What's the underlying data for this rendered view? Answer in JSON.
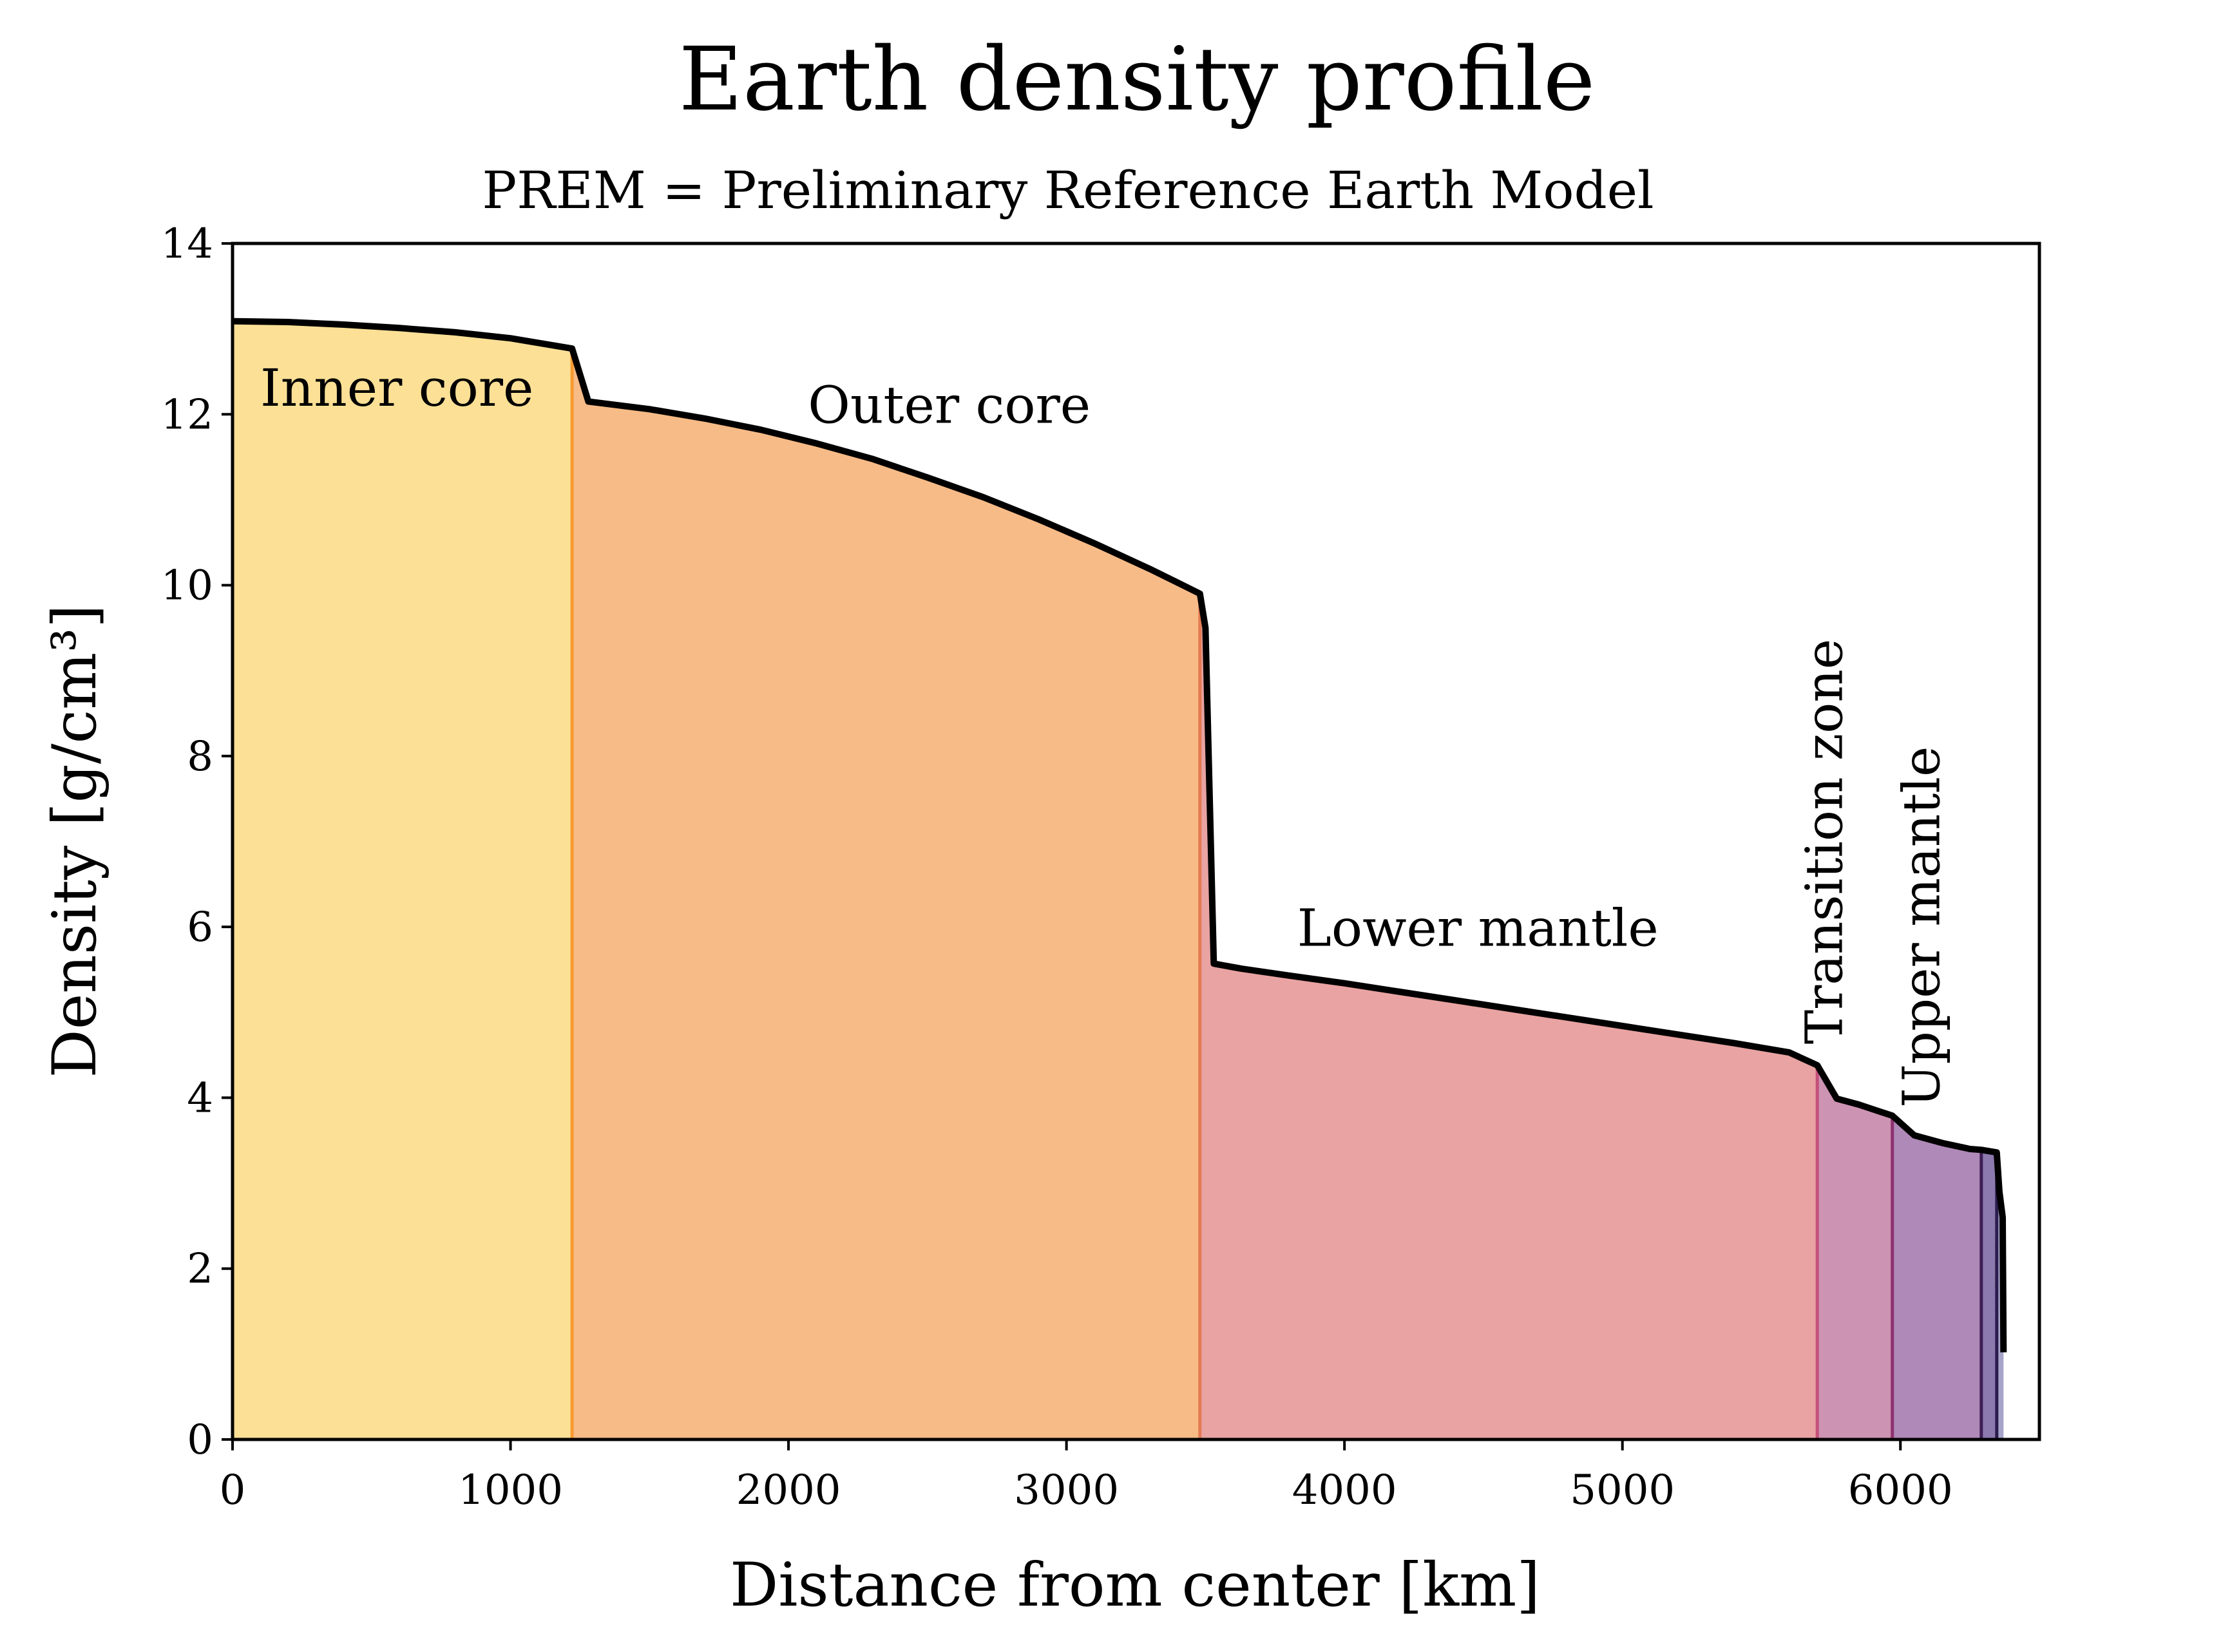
{
  "chart_data": {
    "type": "area",
    "title": "Earth density profile",
    "subtitle": "PREM = Preliminary Reference Earth Model",
    "xlabel": "Distance from center [km]",
    "ylabel": "Density [g/cm³]",
    "xlim": [
      0,
      6500
    ],
    "ylim": [
      0,
      14
    ],
    "x_ticks": [
      0,
      1000,
      2000,
      3000,
      4000,
      5000,
      6000
    ],
    "y_ticks": [
      0,
      2,
      4,
      6,
      8,
      10,
      12,
      14
    ],
    "grid": false,
    "legend": "none",
    "profile": {
      "x": [
        0,
        200,
        400,
        600,
        800,
        1000,
        1221.5,
        1280,
        1500,
        1700,
        1900,
        2100,
        2300,
        2500,
        2700,
        2900,
        3100,
        3300,
        3400,
        3480,
        3500,
        3530,
        3630,
        3800,
        4000,
        4200,
        4400,
        4600,
        4800,
        5000,
        5200,
        5400,
        5600,
        5701,
        5771,
        5850,
        5971,
        6050,
        6151,
        6250,
        6291,
        6346.6,
        6356,
        6368,
        6371
      ],
      "density": [
        13.09,
        13.08,
        13.05,
        13.01,
        12.96,
        12.89,
        12.77,
        12.15,
        12.06,
        11.95,
        11.82,
        11.66,
        11.48,
        11.26,
        11.03,
        10.77,
        10.49,
        10.19,
        10.03,
        9.9,
        9.5,
        5.57,
        5.51,
        5.43,
        5.34,
        5.24,
        5.14,
        5.04,
        4.94,
        4.84,
        4.74,
        4.64,
        4.53,
        4.38,
        3.99,
        3.92,
        3.79,
        3.56,
        3.47,
        3.4,
        3.39,
        3.36,
        2.9,
        2.6,
        1.02
      ]
    },
    "series": [
      {
        "name": "Inner core",
        "x_range": [
          0,
          1221.5
        ],
        "color": "#FBE096"
      },
      {
        "name": "Outer core",
        "x_range": [
          1221.5,
          3480
        ],
        "color": "#F7BB87"
      },
      {
        "name": "Lower mantle",
        "x_range": [
          3480,
          5701
        ],
        "color": "#E8A3A2"
      },
      {
        "name": "Transition zone",
        "x_range": [
          5701,
          5971
        ],
        "color": "#CD93B2"
      },
      {
        "name": "Upper mantle",
        "x_range": [
          5971,
          6291
        ],
        "color": "#AF89B7"
      },
      {
        "name": "",
        "x_range": [
          6291,
          6346.6
        ],
        "color": "#8C79AE"
      },
      {
        "name": "",
        "x_range": [
          6346.6,
          6371
        ],
        "color": "#A6A4C9"
      }
    ],
    "boundary_colors": [
      "#F8992F",
      "#E47A52",
      "#C4507A",
      "#8E3170",
      "#3D1E55",
      "#2B1C4E"
    ],
    "annotations": [
      {
        "text": "Inner core",
        "x": 100,
        "y": 12.1,
        "rotation": 0
      },
      {
        "text": "Outer core",
        "x": 2070,
        "y": 11.9,
        "rotation": 0
      },
      {
        "text": "Lower mantle",
        "x": 3830,
        "y": 5.78,
        "rotation": 0
      },
      {
        "text": "Transition zone",
        "x": 5790,
        "y": 7.0,
        "rotation": -90
      },
      {
        "text": "Upper mantle",
        "x": 6140,
        "y": 6.0,
        "rotation": -90
      }
    ]
  }
}
